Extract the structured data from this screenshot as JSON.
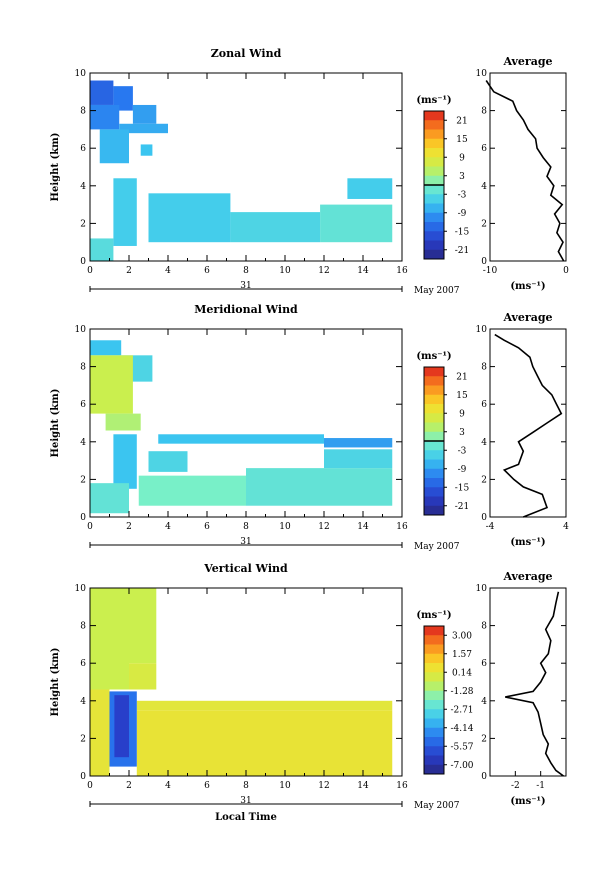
{
  "figure": {
    "xlabel_bottom": "Local Time"
  },
  "chart_data": [
    {
      "type": "heatmap",
      "title": "Zonal Wind",
      "ylabel": "Height (km)",
      "xlim": [
        0,
        16
      ],
      "ylim": [
        0,
        10
      ],
      "xticks": [
        "0",
        "2",
        "4",
        "6",
        "8",
        "10",
        "12",
        "14",
        "16"
      ],
      "yticks": [
        "0",
        "2",
        "4",
        "6",
        "8",
        "10"
      ],
      "date_tick": "31",
      "date_label": "May 2007",
      "colorbar": {
        "unit": "(ms⁻¹)",
        "labels": [
          "21",
          "15",
          "9",
          "3",
          "-3",
          "-9",
          "-15",
          "-21"
        ],
        "min": -24,
        "max": 24,
        "zero_line": 0
      },
      "fill_regions": [
        {
          "x": [
            0,
            1.2
          ],
          "y": [
            8.3,
            9.6
          ],
          "v": -14
        },
        {
          "x": [
            1.2,
            2.2
          ],
          "y": [
            8.0,
            9.3
          ],
          "v": -12
        },
        {
          "x": [
            2.2,
            3.4
          ],
          "y": [
            7.3,
            8.3
          ],
          "v": -9
        },
        {
          "x": [
            0,
            1.5
          ],
          "y": [
            7.0,
            8.3
          ],
          "v": -11
        },
        {
          "x": [
            1.5,
            4.0
          ],
          "y": [
            6.8,
            7.3
          ],
          "v": -8
        },
        {
          "x": [
            0.5,
            2.0
          ],
          "y": [
            5.2,
            7.0
          ],
          "v": -7
        },
        {
          "x": [
            2.6,
            3.2
          ],
          "y": [
            5.6,
            6.2
          ],
          "v": -6
        },
        {
          "x": [
            1.2,
            2.4
          ],
          "y": [
            0.8,
            4.4
          ],
          "v": -5
        },
        {
          "x": [
            0,
            1.2
          ],
          "y": [
            0,
            1.2
          ],
          "v": -3
        },
        {
          "x": [
            3.0,
            7.2
          ],
          "y": [
            1.0,
            3.6
          ],
          "v": -5
        },
        {
          "x": [
            7.2,
            11.8
          ],
          "y": [
            1.0,
            2.6
          ],
          "v": -4
        },
        {
          "x": [
            11.8,
            15.5
          ],
          "y": [
            1.0,
            3.0
          ],
          "v": -2
        },
        {
          "x": [
            13.2,
            15.5
          ],
          "y": [
            3.3,
            4.4
          ],
          "v": -5
        }
      ],
      "avg_panel": {
        "title": "Average",
        "xlim": [
          -10,
          0
        ],
        "xticks": [
          "-10",
          "0"
        ],
        "unit": "(ms⁻¹)",
        "profile": [
          [
            -0.3,
            0
          ],
          [
            -1.0,
            0.5
          ],
          [
            -0.4,
            1.0
          ],
          [
            -1.2,
            1.5
          ],
          [
            -0.8,
            2.0
          ],
          [
            -1.5,
            2.5
          ],
          [
            -0.5,
            3.0
          ],
          [
            -2.0,
            3.5
          ],
          [
            -1.6,
            4.0
          ],
          [
            -2.5,
            4.5
          ],
          [
            -2.0,
            5.0
          ],
          [
            -3.0,
            5.5
          ],
          [
            -3.8,
            6.0
          ],
          [
            -4.0,
            6.5
          ],
          [
            -5.0,
            7.0
          ],
          [
            -5.6,
            7.5
          ],
          [
            -6.5,
            8.0
          ],
          [
            -7.0,
            8.5
          ],
          [
            -9.5,
            9.0
          ],
          [
            -10.0,
            9.3
          ],
          [
            -10.5,
            9.6
          ]
        ]
      }
    },
    {
      "type": "heatmap",
      "title": "Meridional Wind",
      "ylabel": "Height (km)",
      "xlim": [
        0,
        16
      ],
      "ylim": [
        0,
        10
      ],
      "xticks": [
        "0",
        "2",
        "4",
        "6",
        "8",
        "10",
        "12",
        "14",
        "16"
      ],
      "yticks": [
        "0",
        "2",
        "4",
        "6",
        "8",
        "10"
      ],
      "date_tick": "31",
      "date_label": "May 2007",
      "colorbar": {
        "unit": "(ms⁻¹)",
        "labels": [
          "21",
          "15",
          "9",
          "3",
          "-3",
          "-9",
          "-15",
          "-21"
        ],
        "min": -24,
        "max": 24,
        "zero_line": 0
      },
      "fill_regions": [
        {
          "x": [
            0,
            1.6
          ],
          "y": [
            8.6,
            9.4
          ],
          "v": -6
        },
        {
          "x": [
            1.6,
            3.2
          ],
          "y": [
            7.2,
            8.6
          ],
          "v": -4
        },
        {
          "x": [
            0,
            2.2
          ],
          "y": [
            5.5,
            8.6
          ],
          "v": 6
        },
        {
          "x": [
            0.8,
            2.6
          ],
          "y": [
            4.6,
            5.5
          ],
          "v": 4
        },
        {
          "x": [
            1.2,
            2.4
          ],
          "y": [
            1.5,
            4.4
          ],
          "v": -6
        },
        {
          "x": [
            0,
            2.0
          ],
          "y": [
            0.2,
            1.8
          ],
          "v": -2
        },
        {
          "x": [
            3.0,
            5.0
          ],
          "y": [
            2.4,
            3.5
          ],
          "v": -4
        },
        {
          "x": [
            2.5,
            8.0
          ],
          "y": [
            0.6,
            2.2
          ],
          "v": 0
        },
        {
          "x": [
            8.0,
            15.5
          ],
          "y": [
            0.6,
            2.6
          ],
          "v": -2
        },
        {
          "x": [
            12.0,
            15.5
          ],
          "y": [
            2.6,
            3.6
          ],
          "v": -4
        },
        {
          "x": [
            3.5,
            12.0
          ],
          "y": [
            3.9,
            4.4
          ],
          "v": -6
        },
        {
          "x": [
            12.0,
            15.5
          ],
          "y": [
            3.7,
            4.2
          ],
          "v": -9
        }
      ],
      "avg_panel": {
        "title": "Average",
        "xlim": [
          -4,
          4
        ],
        "xticks": [
          "-4",
          "4"
        ],
        "unit": "(ms⁻¹)",
        "profile": [
          [
            -0.5,
            0
          ],
          [
            2.0,
            0.5
          ],
          [
            1.5,
            1.2
          ],
          [
            -0.5,
            1.6
          ],
          [
            -1.5,
            2.0
          ],
          [
            -2.5,
            2.5
          ],
          [
            -1.0,
            2.8
          ],
          [
            -0.5,
            3.5
          ],
          [
            -1.0,
            4.0
          ],
          [
            0.5,
            4.5
          ],
          [
            2.0,
            5.0
          ],
          [
            3.5,
            5.5
          ],
          [
            3.0,
            6.0
          ],
          [
            2.5,
            6.5
          ],
          [
            1.5,
            7.0
          ],
          [
            1.0,
            7.5
          ],
          [
            0.5,
            8.0
          ],
          [
            0.2,
            8.5
          ],
          [
            -1.0,
            9.0
          ],
          [
            -2.5,
            9.4
          ],
          [
            -3.5,
            9.7
          ]
        ]
      }
    },
    {
      "type": "heatmap",
      "title": "Vertical Wind",
      "ylabel": "Height (km)",
      "xlim": [
        0,
        16
      ],
      "ylim": [
        0,
        10
      ],
      "xticks": [
        "0",
        "2",
        "4",
        "6",
        "8",
        "10",
        "12",
        "14",
        "16"
      ],
      "yticks": [
        "0",
        "2",
        "4",
        "6",
        "8",
        "10"
      ],
      "date_tick": "31",
      "date_label": "May 2007",
      "colorbar": {
        "unit": "(ms⁻¹)",
        "labels": [
          "3.00",
          "1.57",
          "0.14",
          "-1.28",
          "-2.71",
          "-4.14",
          "-5.57",
          "-7.00"
        ],
        "min": -8.0,
        "max": 3.8,
        "zero_line": null
      },
      "fill_regions": [
        {
          "x": [
            0,
            2.0
          ],
          "y": [
            4.6,
            10.0
          ],
          "v": -0.6
        },
        {
          "x": [
            2.0,
            3.4
          ],
          "y": [
            6.0,
            10.0
          ],
          "v": -0.6
        },
        {
          "x": [
            2.0,
            3.4
          ],
          "y": [
            4.6,
            6.0
          ],
          "v": -0.2
        },
        {
          "x": [
            0,
            1.0
          ],
          "y": [
            0,
            4.6
          ],
          "v": 0.2
        },
        {
          "x": [
            2.4,
            15.5
          ],
          "y": [
            0,
            3.5
          ],
          "v": 0.3
        },
        {
          "x": [
            2.4,
            15.5
          ],
          "y": [
            3.5,
            4.0
          ],
          "v": 0.1
        },
        {
          "x": [
            1.0,
            2.4
          ],
          "y": [
            0.5,
            4.5
          ],
          "v": -5.2
        },
        {
          "x": [
            1.25,
            2.0
          ],
          "y": [
            1.0,
            4.3
          ],
          "v": -6.5
        }
      ],
      "avg_panel": {
        "title": "Average",
        "xlim": [
          -3,
          0
        ],
        "xticks": [
          "-2",
          "-1"
        ],
        "unit": "(ms⁻¹)",
        "profile": [
          [
            -0.1,
            0
          ],
          [
            -0.4,
            0.3
          ],
          [
            -0.6,
            0.7
          ],
          [
            -0.8,
            1.2
          ],
          [
            -0.7,
            1.7
          ],
          [
            -0.9,
            2.2
          ],
          [
            -1.0,
            2.8
          ],
          [
            -1.1,
            3.4
          ],
          [
            -1.3,
            3.9
          ],
          [
            -2.4,
            4.2
          ],
          [
            -1.3,
            4.5
          ],
          [
            -1.0,
            5.0
          ],
          [
            -0.8,
            5.5
          ],
          [
            -1.0,
            6.0
          ],
          [
            -0.7,
            6.5
          ],
          [
            -0.6,
            7.2
          ],
          [
            -0.8,
            7.8
          ],
          [
            -0.5,
            8.5
          ],
          [
            -0.4,
            9.2
          ],
          [
            -0.3,
            9.8
          ]
        ]
      }
    }
  ]
}
